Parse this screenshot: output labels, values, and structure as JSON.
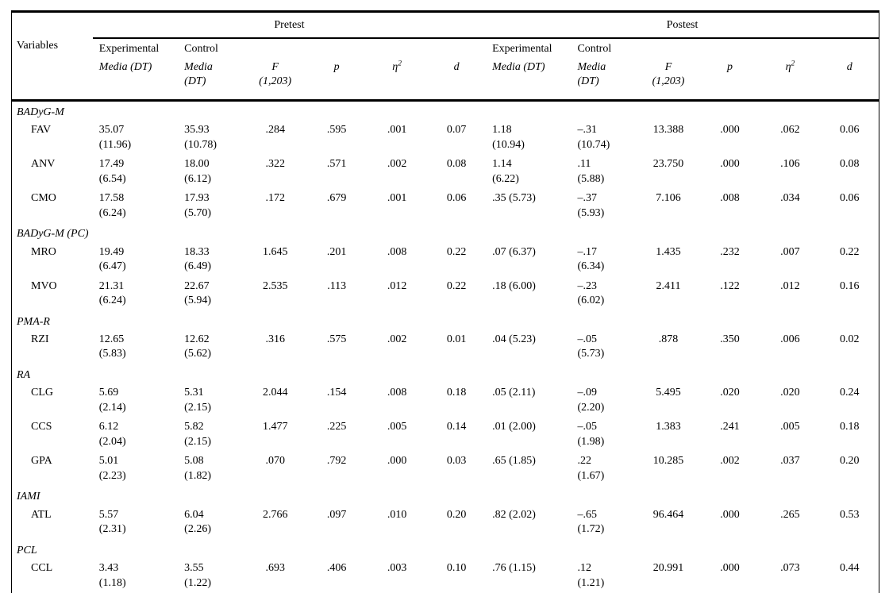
{
  "meta": {
    "background_color": "#ffffff",
    "text_color": "#000000",
    "rule_color": "#000000"
  },
  "header": {
    "variables_label": "Variables",
    "groups": [
      {
        "label": "Pretest"
      },
      {
        "label": "Postest"
      }
    ],
    "subheaders": {
      "experimental": "Experimental",
      "control": "Control",
      "media_exp": "Media (DT)",
      "media_ctrl": "Media\n(DT)",
      "f_label": "F\n(1,203)",
      "p_label": "p",
      "eta_label": "η",
      "eta_sup": "2",
      "d_label": "d"
    }
  },
  "sections": [
    {
      "label": "BADyG-M",
      "rows": [
        {
          "variable": "FAV",
          "cells": [
            "35.07\n(11.96)",
            "35.93\n(10.78)",
            ".284",
            ".595",
            ".001",
            "0.07",
            "1.18\n(10.94)",
            "–.31\n(10.74)",
            "13.388",
            ".000",
            ".062",
            "0.06"
          ]
        },
        {
          "variable": "ANV",
          "cells": [
            "17.49\n(6.54)",
            "18.00\n(6.12)",
            ".322",
            ".571",
            ".002",
            "0.08",
            "1.14\n(6.22)",
            ".11\n(5.88)",
            "23.750",
            ".000",
            ".106",
            "0.08"
          ]
        },
        {
          "variable": "CMO",
          "cells": [
            "17.58\n(6.24)",
            "17.93\n(5.70)",
            ".172",
            ".679",
            ".001",
            "0.06",
            ".35 (5.73)",
            "–.37\n(5.93)",
            "7.106",
            ".008",
            ".034",
            "0.06"
          ]
        }
      ]
    },
    {
      "label": "BADyG-M (PC)",
      "rows": [
        {
          "variable": "MRO",
          "cells": [
            "19.49\n(6.47)",
            "18.33\n(6.49)",
            "1.645",
            ".201",
            ".008",
            "0.22",
            ".07 (6.37)",
            "–.17\n(6.34)",
            "1.435",
            ".232",
            ".007",
            "0.22"
          ]
        },
        {
          "variable": "MVO",
          "cells": [
            "21.31\n(6.24)",
            "22.67\n(5.94)",
            "2.535",
            ".113",
            ".012",
            "0.22",
            ".18 (6.00)",
            "–.23\n(6.02)",
            "2.411",
            ".122",
            ".012",
            "0.16"
          ]
        }
      ]
    },
    {
      "label": "PMA-R",
      "rows": [
        {
          "variable": "RZI",
          "cells": [
            "12.65\n(5.83)",
            "12.62\n(5.62)",
            ".316",
            ".575",
            ".002",
            "0.01",
            ".04 (5.23)",
            "–.05\n(5.73)",
            ".878",
            ".350",
            ".006",
            "0.02"
          ]
        }
      ]
    },
    {
      "label": "RA",
      "rows": [
        {
          "variable": "CLG",
          "cells": [
            "5.69\n(2.14)",
            "5.31\n(2.15)",
            "2.044",
            ".154",
            ".008",
            "0.18",
            ".05 (2.11)",
            "–.09\n(2.20)",
            "5.495",
            ".020",
            ".020",
            "0.24"
          ]
        },
        {
          "variable": "CCS",
          "cells": [
            "6.12\n(2.04)",
            "5.82\n(2.15)",
            "1.477",
            ".225",
            ".005",
            "0.14",
            ".01 (2.00)",
            "–.05\n(1.98)",
            "1.383",
            ".241",
            ".005",
            "0.18"
          ]
        },
        {
          "variable": "GPA",
          "cells": [
            "5.01\n(2.23)",
            "5.08\n(1.82)",
            ".070",
            ".792",
            ".000",
            "0.03",
            ".65 (1.85)",
            ".22\n(1.67)",
            "10.285",
            ".002",
            ".037",
            "0.20"
          ]
        }
      ]
    },
    {
      "label": "IAMI",
      "rows": [
        {
          "variable": "ATL",
          "cells": [
            "5.57\n(2.31)",
            "6.04\n(2.26)",
            "2.766",
            ".097",
            ".010",
            "0.20",
            ".82 (2.02)",
            "–.65\n(1.72)",
            "96.464",
            ".000",
            ".265",
            "0.53"
          ]
        }
      ]
    },
    {
      "label": "PCL",
      "rows": [
        {
          "variable": "CCL",
          "cells": [
            "3.43\n(1.18)",
            "3.55\n(1.22)",
            ".693",
            ".406",
            ".003",
            "0.10",
            ".76 (1.15)",
            ".12\n(1.21)",
            "20.991",
            ".000",
            ".073",
            "0.44"
          ]
        }
      ]
    }
  ]
}
